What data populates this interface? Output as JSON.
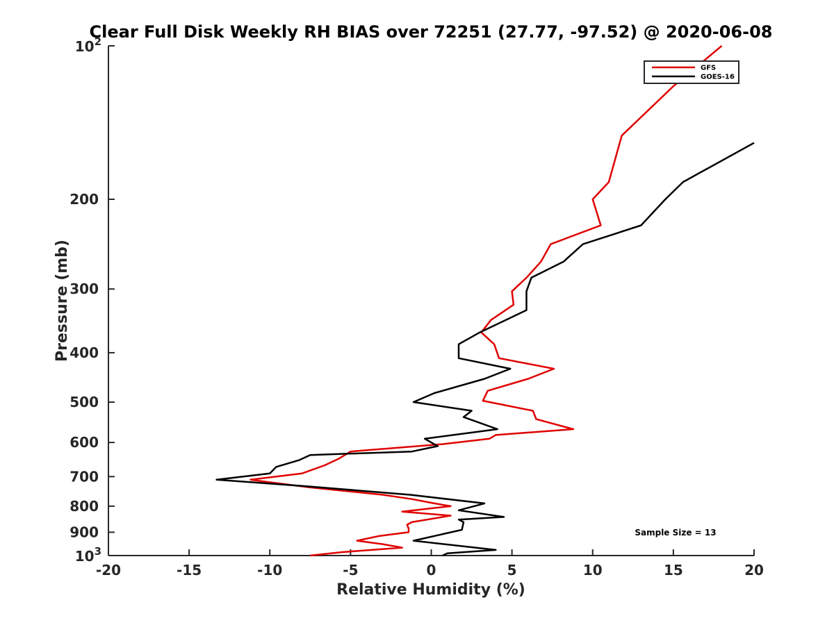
{
  "chart_data": {
    "type": "line",
    "title": "Clear Full Disk Weekly RH BIAS over 72251 (27.77, -97.52) @ 2020-06-08",
    "xlabel": "Relative Humidity (%)",
    "ylabel": "Pressure (mb)",
    "xlim": [
      -20,
      20
    ],
    "ylim": [
      100,
      1000
    ],
    "y_scale": "log",
    "y_reversed": true,
    "grid": false,
    "legend_position": "top-right",
    "x_ticks": [
      "-20",
      "-15",
      "-10",
      "-5",
      "0",
      "5",
      "10",
      "15",
      "20"
    ],
    "y_ticks": [
      "200",
      "300",
      "400",
      "500",
      "600",
      "700",
      "800",
      "900"
    ],
    "y_tick_100": {
      "base": "10",
      "exp": "2"
    },
    "y_tick_1000": {
      "base": "10",
      "exp": "3"
    },
    "annotation": "Sample Size = 13",
    "series": [
      {
        "name": "GFS",
        "color": "#e00000",
        "points": [
          [
            18.0,
            100
          ],
          [
            15.0,
            120
          ],
          [
            11.8,
            150
          ],
          [
            11.0,
            185
          ],
          [
            10.0,
            200
          ],
          [
            10.5,
            225
          ],
          [
            7.4,
            245
          ],
          [
            6.8,
            265
          ],
          [
            5.9,
            285
          ],
          [
            5.0,
            303
          ],
          [
            5.1,
            322
          ],
          [
            3.7,
            345
          ],
          [
            3.1,
            365
          ],
          [
            3.9,
            385
          ],
          [
            4.2,
            410
          ],
          [
            7.6,
            430
          ],
          [
            6.0,
            450
          ],
          [
            3.5,
            475
          ],
          [
            3.2,
            497
          ],
          [
            6.3,
            520
          ],
          [
            6.5,
            540
          ],
          [
            8.8,
            565
          ],
          [
            4.0,
            580
          ],
          [
            3.6,
            590
          ],
          [
            0.6,
            605
          ],
          [
            -5.0,
            625
          ],
          [
            -5.7,
            645
          ],
          [
            -6.6,
            665
          ],
          [
            -8.0,
            690
          ],
          [
            -11.2,
            710
          ],
          [
            -7.5,
            735
          ],
          [
            -3.0,
            760
          ],
          [
            -1.2,
            775
          ],
          [
            0.2,
            790
          ],
          [
            1.2,
            800
          ],
          [
            -1.8,
            820
          ],
          [
            1.2,
            835
          ],
          [
            -1.2,
            860
          ],
          [
            -1.5,
            870
          ],
          [
            -1.4,
            885
          ],
          [
            -1.4,
            900
          ],
          [
            -3.2,
            915
          ],
          [
            -4.6,
            935
          ],
          [
            -3.0,
            950
          ],
          [
            -1.8,
            965
          ],
          [
            -5.6,
            985
          ],
          [
            -7.5,
            1000
          ]
        ]
      },
      {
        "name": "GOES-16",
        "color": "#000000",
        "points": [
          [
            20.0,
            155
          ],
          [
            15.6,
            185
          ],
          [
            14.5,
            200
          ],
          [
            13.0,
            225
          ],
          [
            9.4,
            245
          ],
          [
            8.2,
            265
          ],
          [
            6.2,
            285
          ],
          [
            5.9,
            303
          ],
          [
            5.9,
            330
          ],
          [
            3.0,
            365
          ],
          [
            1.7,
            385
          ],
          [
            1.7,
            410
          ],
          [
            4.9,
            430
          ],
          [
            3.3,
            450
          ],
          [
            0.2,
            480
          ],
          [
            -1.1,
            500
          ],
          [
            2.5,
            520
          ],
          [
            2.0,
            535
          ],
          [
            4.1,
            565
          ],
          [
            -0.4,
            590
          ],
          [
            0.4,
            610
          ],
          [
            -1.2,
            625
          ],
          [
            -7.5,
            635
          ],
          [
            -8.2,
            650
          ],
          [
            -9.6,
            670
          ],
          [
            -10.0,
            690
          ],
          [
            -13.3,
            710
          ],
          [
            -8.0,
            730
          ],
          [
            -1.3,
            760
          ],
          [
            3.3,
            790
          ],
          [
            1.7,
            815
          ],
          [
            4.5,
            840
          ],
          [
            1.7,
            850
          ],
          [
            2.0,
            860
          ],
          [
            1.9,
            890
          ],
          [
            -1.1,
            935
          ],
          [
            4.0,
            975
          ],
          [
            1.0,
            990
          ],
          [
            0.7,
            1000
          ]
        ]
      }
    ]
  }
}
